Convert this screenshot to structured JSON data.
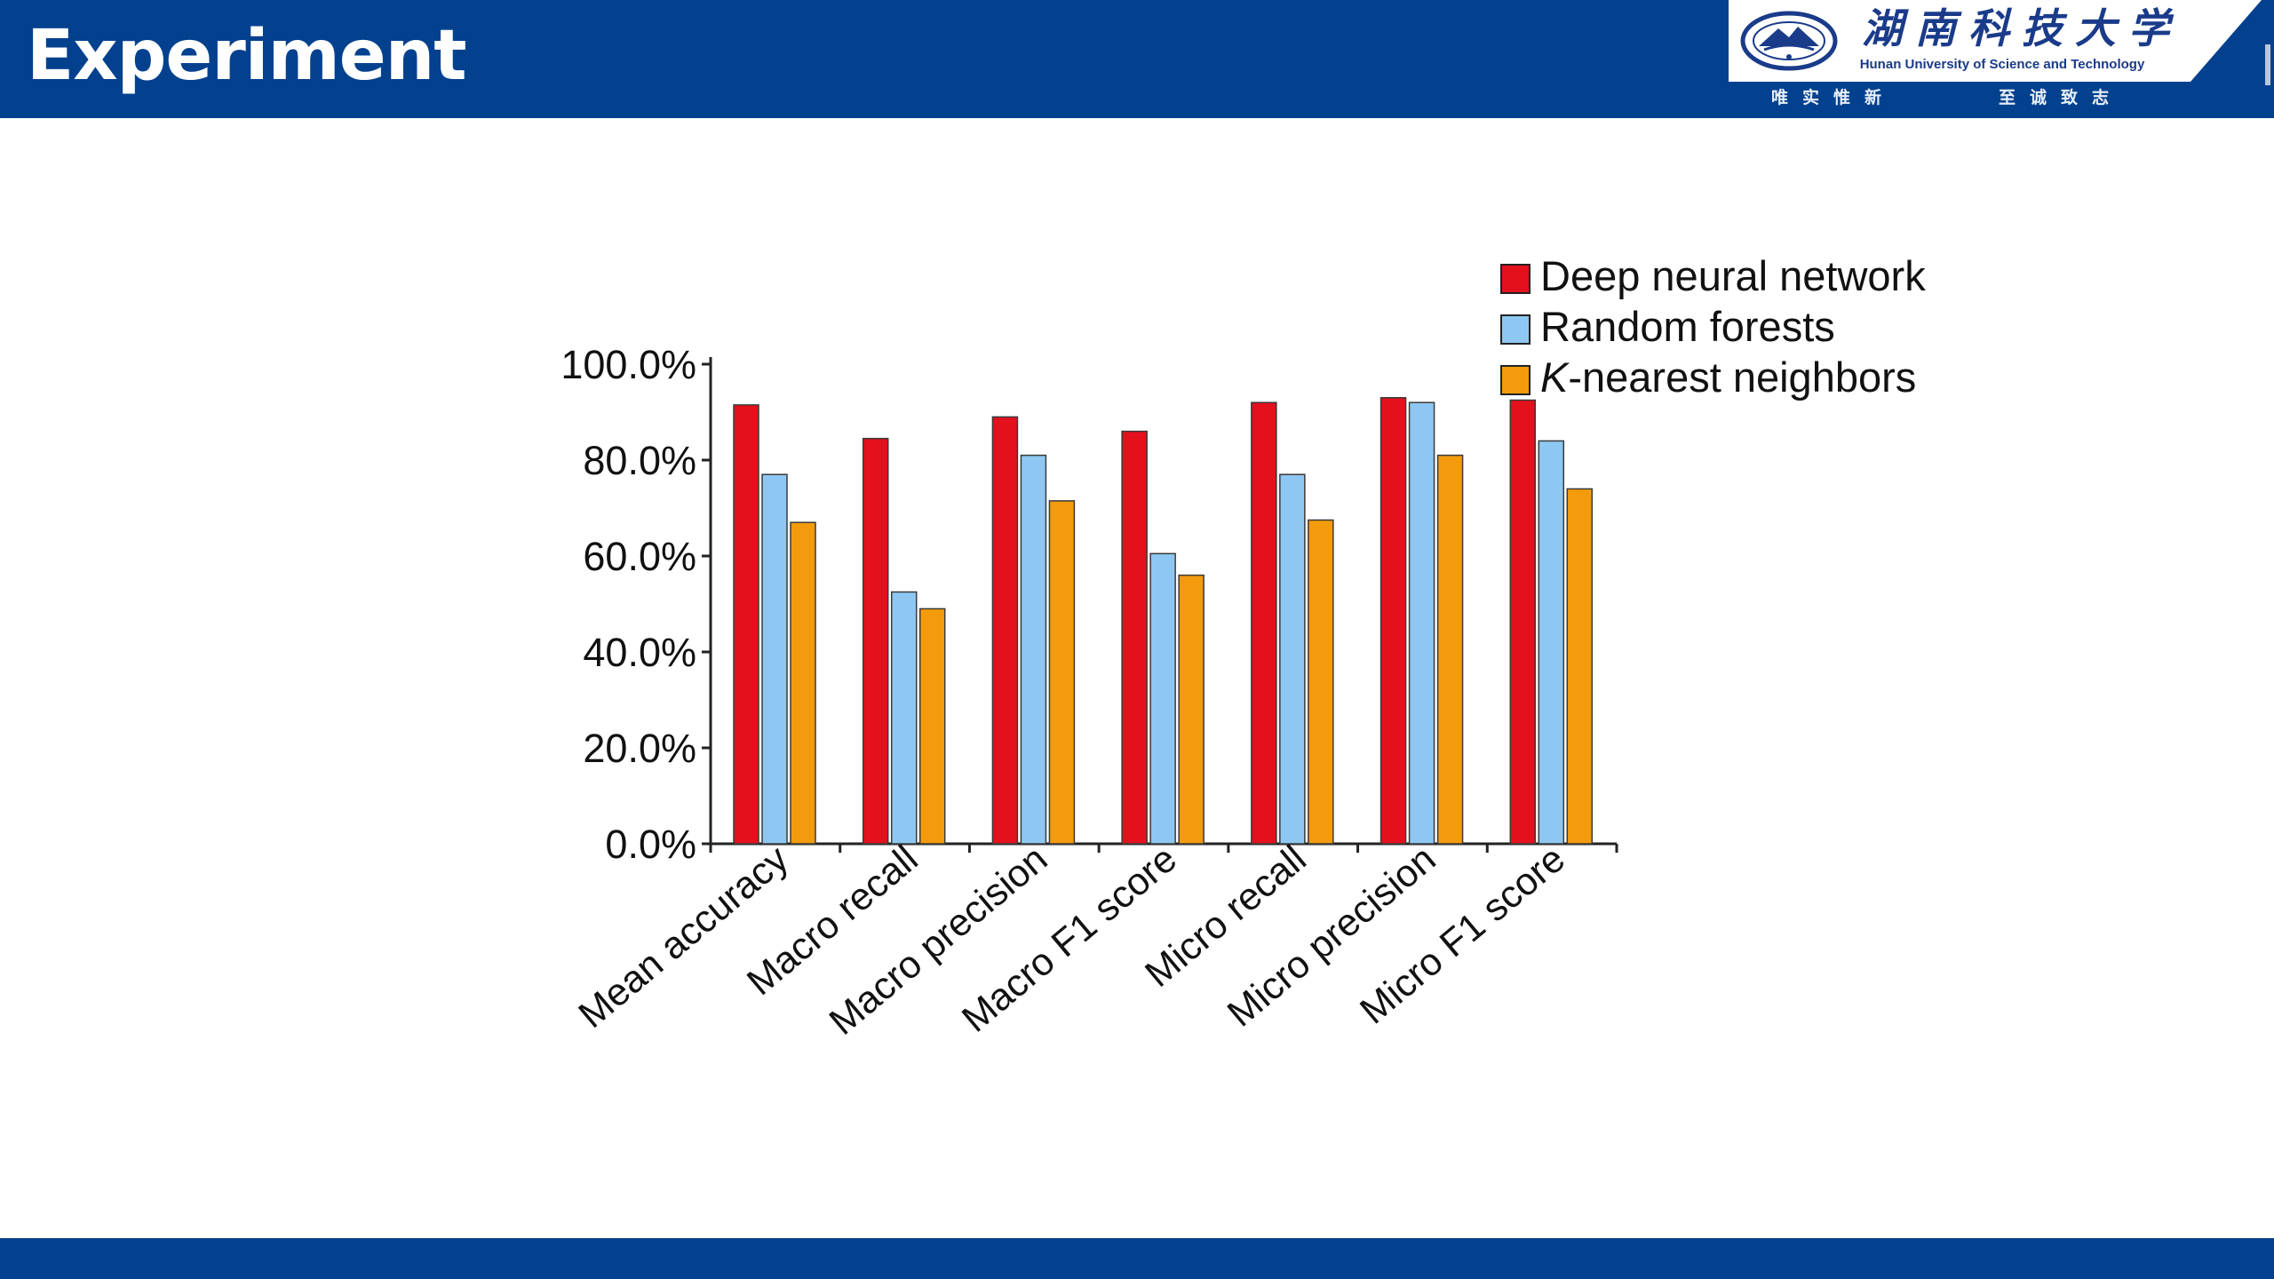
{
  "slide": {
    "title": "Experiment"
  },
  "logo": {
    "name_cn": "湖南科技大学",
    "name_en": "Hunan University of Science and Technology",
    "motto_left": "唯实惟新",
    "motto_right": "至诚致志",
    "icon": "university-emblem-icon"
  },
  "colors": {
    "brand_blue": "#03418f",
    "dnn": "#e4101c",
    "rf": "#8ec8f2",
    "knn": "#f39b0c"
  },
  "chart_data": {
    "type": "bar",
    "categories": [
      "Mean accuracy",
      "Macro recall",
      "Macro precision",
      "Macro F1 score",
      "Micro recall",
      "Micro precision",
      "Micro F1 score"
    ],
    "series": [
      {
        "name": "Deep neural network",
        "name_prefix": "",
        "name_italic": "",
        "name_rest": "Deep neural network",
        "color": "#e4101c",
        "values": [
          91.5,
          84.5,
          89.0,
          86.0,
          92.0,
          93.0,
          92.5
        ]
      },
      {
        "name": "Random forests",
        "name_prefix": "",
        "name_italic": "",
        "name_rest": "Random forests",
        "color": "#8ec8f2",
        "values": [
          77.0,
          52.5,
          81.0,
          60.5,
          77.0,
          92.0,
          84.0
        ]
      },
      {
        "name": "K-nearest neighbors",
        "name_prefix": "",
        "name_italic": "K",
        "name_rest": "-nearest neighbors",
        "color": "#f39b0c",
        "values": [
          67.0,
          49.0,
          71.5,
          56.0,
          67.5,
          81.0,
          74.0
        ]
      }
    ],
    "yticks": [
      "0.0%",
      "20.0%",
      "40.0%",
      "60.0%",
      "80.0%",
      "100.0%"
    ],
    "ytick_values": [
      0,
      20,
      40,
      60,
      80,
      100
    ],
    "ylim": [
      0,
      100
    ],
    "title": "",
    "xlabel": "",
    "ylabel": "",
    "legend_position": "top-right",
    "grid": false
  }
}
